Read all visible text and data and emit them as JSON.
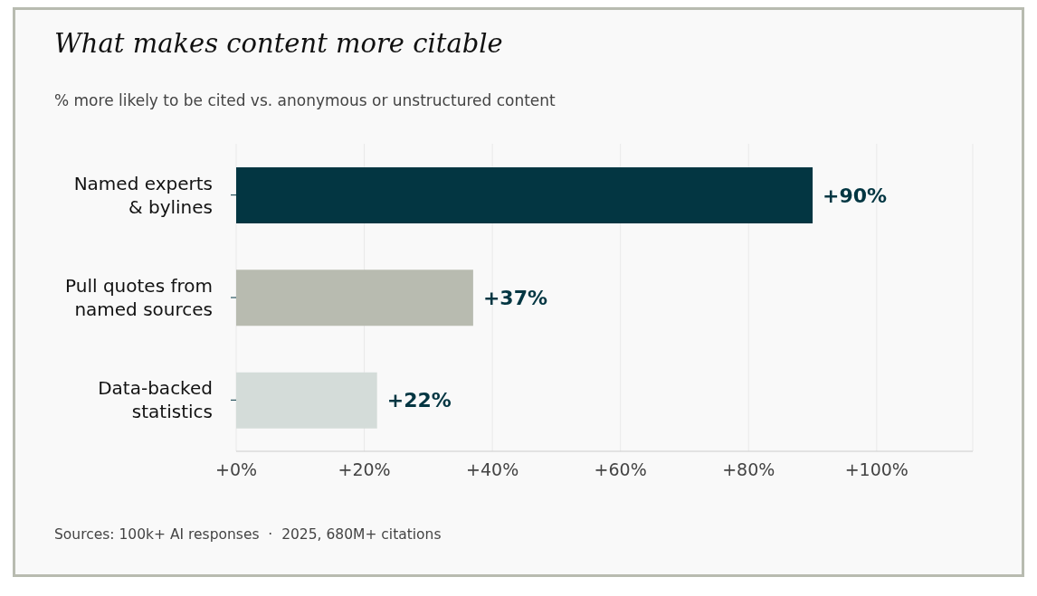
{
  "chart_data": {
    "type": "bar",
    "orientation": "horizontal",
    "title": "What makes content more citable",
    "subtitle": "% more likely to be cited vs. anonymous or unstructured content",
    "categories": [
      "Named experts\n& bylines",
      "Pull quotes from\nnamed sources",
      "Data-backed\nstatistics"
    ],
    "values": [
      90,
      37,
      22
    ],
    "colors": [
      "#033642",
      "#b8bbb0",
      "#d4dcd9"
    ],
    "value_labels": [
      "+90%",
      "+37%",
      "+22%"
    ],
    "xlim": [
      0,
      115
    ],
    "xticks": [
      {
        "value": 0,
        "label": "+0%"
      },
      {
        "value": 20,
        "label": "+20%"
      },
      {
        "value": 40,
        "label": "+40%"
      },
      {
        "value": 60,
        "label": "+60%"
      },
      {
        "value": 80,
        "label": "+80%"
      },
      {
        "value": 100,
        "label": "+100%"
      }
    ],
    "grid": "x",
    "annotations": [
      "Sources: 100k+ AI responses  ·  2025, 680M+ citations"
    ]
  }
}
